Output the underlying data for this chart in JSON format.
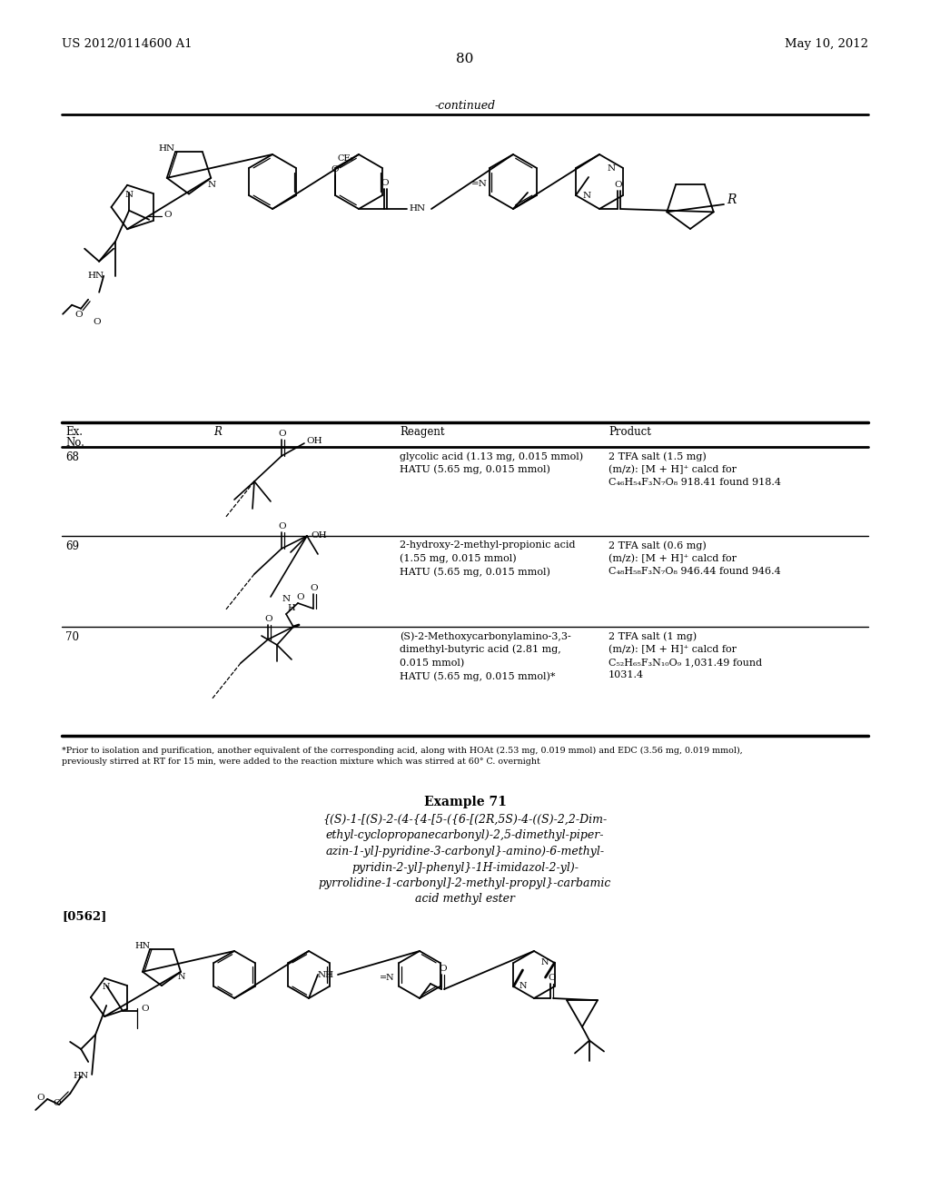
{
  "bg_color": "#ffffff",
  "header_left": "US 2012/0114600 A1",
  "header_right": "May 10, 2012",
  "page_number": "80",
  "continued_text": "-continued",
  "footnote": "*Prior to isolation and purification, another equivalent of the corresponding acid, along with HOAt (2.53 mg, 0.019 mmol) and EDC (3.56 mg, 0.019 mmol),\npreviously stirred at RT for 15 min, were added to the reaction mixture which was stirred at 60° C. overnight",
  "example71_title": "Example 71",
  "example71_name": "{(S)-1-[(S)-2-(4-{4-[5-({6-[(2R,5S)-4-((S)-2,2-Dim-\nethyl-cyclopropanecarbonyl)-2,5-dimethyl-piper-\nazin-1-yl]-pyridine-3-carbonyl}-amino)-6-methyl-\npyridin-2-yl]-phenyl}-1H-imidazol-2-yl)-\npyrrolidine-1-carbonyl]-2-methyl-propyl}-carbamic\nacid methyl ester",
  "paragraph_ref": "[0562]",
  "row68_reagent": "glycolic acid (1.13 mg, 0.015 mmol)\nHATU (5.65 mg, 0.015 mmol)",
  "row68_product": "2 TFA salt (1.5 mg)\n(m/z): [M + H]+ calcd for\nC46H54F3N7O8 918.41 found 918.4",
  "row69_reagent": "2-hydroxy-2-methyl-propionic acid\n(1.55 mg, 0.015 mmol)\nHATU (5.65 mg, 0.015 mmol)",
  "row69_product": "2 TFA salt (0.6 mg)\n(m/z): [M + H]+ calcd for\nC48H58F3N7O8 946.44 found 946.4",
  "row70_reagent": "(S)-2-Methoxycarbonylamino-3,3-\ndimethyl-butyric acid (2.81 mg,\n0.015 mmol)\nHATU (5.65 mg, 0.015 mmol)*",
  "row70_product": "2 TFA salt (1 mg)\n(m/z): [M + H]+ calcd for\nC52H65F3N10O9 1,031.49 found\n1031.4"
}
